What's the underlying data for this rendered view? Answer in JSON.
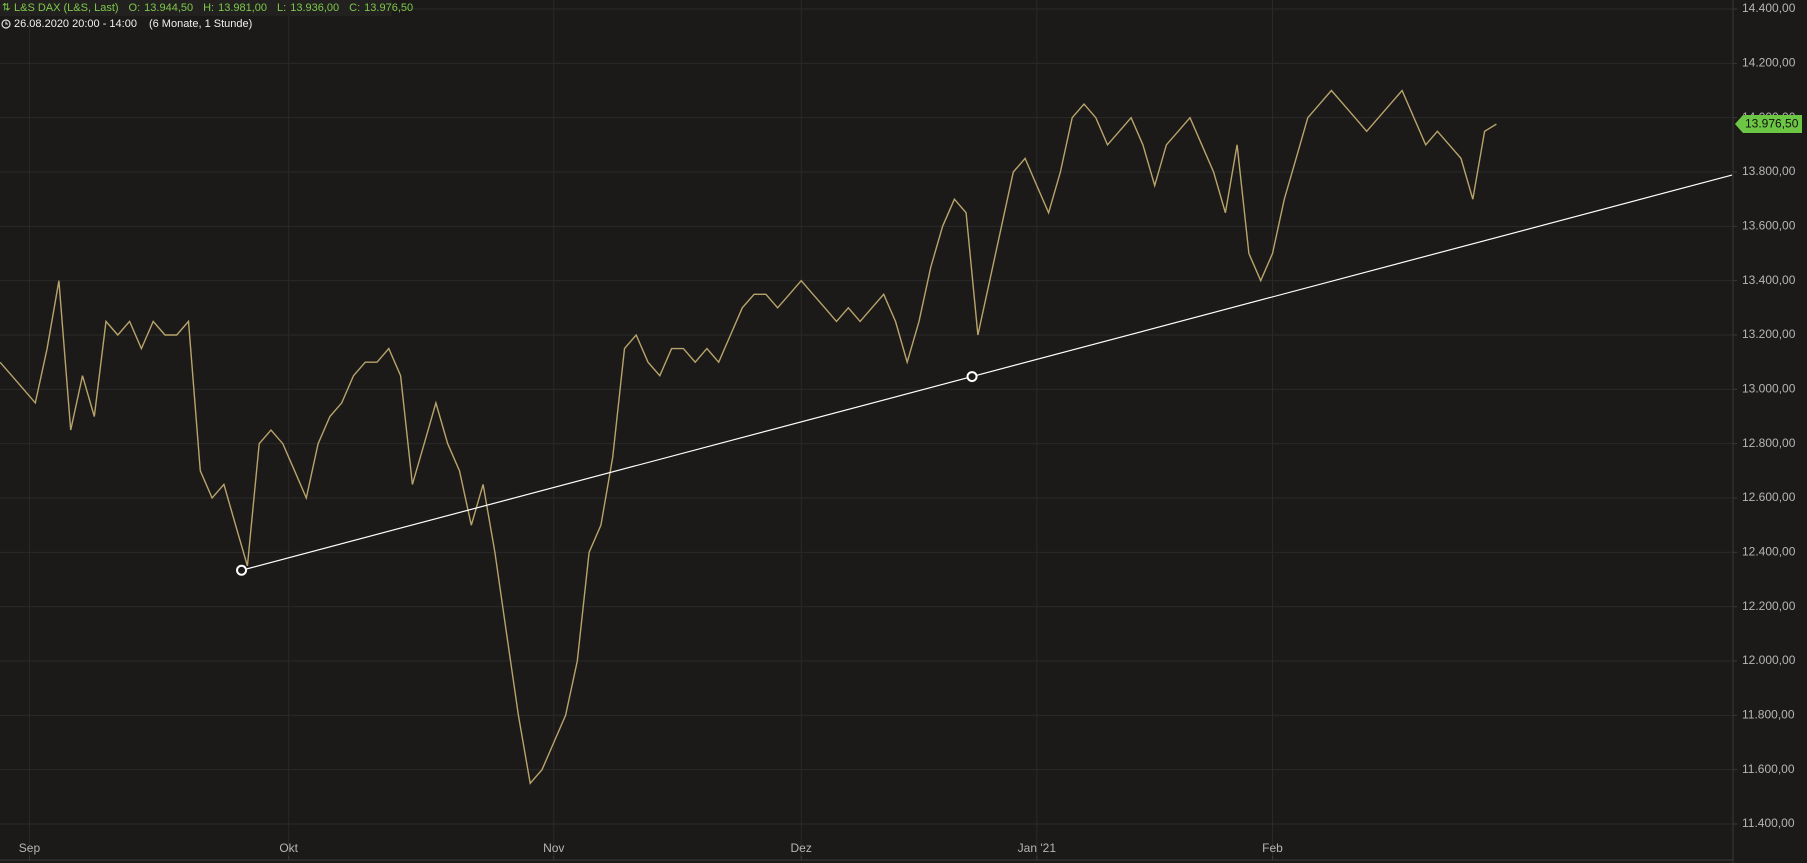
{
  "chart_data": {
    "type": "line",
    "title": "L&S DAX (L&S, Last)",
    "ohlc": [
      {
        "label": "O:",
        "value": "13.944,50"
      },
      {
        "label": "H:",
        "value": "13.981,00"
      },
      {
        "label": "L:",
        "value": "13.936,00"
      },
      {
        "label": "C:",
        "value": "13.976,50"
      }
    ],
    "period": "26.08.2020 20:00 - 14:00",
    "range": "(6 Monate, 1 Stunde)",
    "x": [
      0,
      1,
      2,
      3,
      4,
      5,
      6,
      7,
      8,
      9,
      10,
      11,
      12,
      13,
      14,
      15,
      16,
      17,
      18,
      19,
      20,
      21,
      22,
      23,
      24,
      25,
      26,
      27,
      28,
      29,
      30,
      31,
      32,
      33,
      34,
      35,
      36,
      37,
      38,
      39,
      40,
      41,
      42,
      43,
      44,
      45,
      46,
      47,
      48,
      49,
      50,
      51,
      52,
      53,
      54,
      55,
      56,
      57,
      58,
      59,
      60,
      61,
      62,
      63,
      64,
      65,
      66,
      67,
      68,
      69,
      70,
      71,
      72,
      73,
      74,
      75,
      76,
      77,
      78,
      79,
      80,
      81,
      82,
      83,
      84,
      85,
      86,
      87,
      88,
      89,
      90,
      91,
      92,
      93,
      94,
      95,
      96,
      97,
      98,
      99,
      100,
      101,
      102,
      103,
      104,
      105,
      106,
      107,
      108,
      109,
      110,
      111,
      112,
      113,
      114,
      115,
      116,
      117,
      118,
      119,
      120,
      121,
      122,
      123,
      124,
      125,
      126,
      127
    ],
    "series": [
      {
        "name": "L&S DAX",
        "color": "#b8a46a",
        "values": [
          13100,
          13050,
          13000,
          12950,
          13150,
          13400,
          12850,
          13050,
          12900,
          13250,
          13200,
          13250,
          13150,
          13250,
          13200,
          13200,
          13250,
          12700,
          12600,
          12650,
          12500,
          12350,
          12800,
          12850,
          12800,
          12700,
          12600,
          12800,
          12900,
          12950,
          13050,
          13100,
          13100,
          13150,
          13050,
          12650,
          12800,
          12950,
          12800,
          12700,
          12500,
          12650,
          12400,
          12100,
          11800,
          11550,
          11600,
          11700,
          11800,
          12000,
          12400,
          12500,
          12750,
          13150,
          13200,
          13100,
          13050,
          13150,
          13150,
          13100,
          13150,
          13100,
          13200,
          13300,
          13350,
          13350,
          13300,
          13350,
          13400,
          13350,
          13300,
          13250,
          13300,
          13250,
          13300,
          13350,
          13250,
          13100,
          13250,
          13450,
          13600,
          13700,
          13650,
          13200,
          13400,
          13600,
          13800,
          13850,
          13750,
          13650,
          13800,
          14000,
          14050,
          14000,
          13900,
          13950,
          14000,
          13900,
          13750,
          13900,
          13950,
          14000,
          13900,
          13800,
          13650,
          13900,
          13500,
          13400,
          13500,
          13700,
          13850,
          14000,
          14050,
          14100,
          14050,
          14000,
          13950,
          14000,
          14050,
          14100,
          14000,
          13900,
          13950,
          13900,
          13850,
          13700,
          13950,
          13976.5
        ]
      }
    ],
    "trendline": {
      "x": [
        20.5,
        82.5
      ],
      "y": [
        12334,
        13047
      ],
      "color": "#ffffff"
    },
    "last_price": {
      "value": 13976.5,
      "label": "13.976,50",
      "color": "#6cc644"
    },
    "xlim": [
      0,
      147
    ],
    "xticks": [
      {
        "value": 2.5,
        "label": "Sep"
      },
      {
        "value": 24.5,
        "label": "Okt"
      },
      {
        "value": 47,
        "label": "Nov"
      },
      {
        "value": 68,
        "label": "Dez"
      },
      {
        "value": 88,
        "label": "Jan '21"
      },
      {
        "value": 108,
        "label": "Feb"
      }
    ],
    "ylim": [
      11400,
      14400
    ],
    "yticks": [
      {
        "value": 11400,
        "label": "11.400,00"
      },
      {
        "value": 11600,
        "label": "11.600,00"
      },
      {
        "value": 11800,
        "label": "11.800,00"
      },
      {
        "value": 12000,
        "label": "12.000,00"
      },
      {
        "value": 12200,
        "label": "12.200,00"
      },
      {
        "value": 12400,
        "label": "12.400,00"
      },
      {
        "value": 12600,
        "label": "12.600,00"
      },
      {
        "value": 12800,
        "label": "12.800,00"
      },
      {
        "value": 13000,
        "label": "13.000,00"
      },
      {
        "value": 13200,
        "label": "13.200,00"
      },
      {
        "value": 13400,
        "label": "13.400,00"
      },
      {
        "value": 13600,
        "label": "13.600,00"
      },
      {
        "value": 13800,
        "label": "13.800,00"
      },
      {
        "value": 14000,
        "label": "14.000,00"
      },
      {
        "value": 14200,
        "label": "14.200,00"
      },
      {
        "value": 14400,
        "label": "14.400,00"
      }
    ],
    "grid": true
  }
}
